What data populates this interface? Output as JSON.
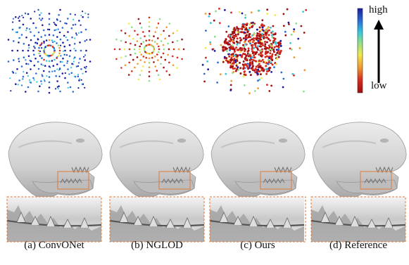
{
  "colorbar": {
    "high_label": "high",
    "low_label": "low",
    "gradient": [
      "#1a1aa0",
      "#2b6fd6",
      "#34c6e0",
      "#8be08a",
      "#f2e84a",
      "#f29a2e",
      "#d62a1e",
      "#9e0f0f"
    ]
  },
  "colors": {
    "mesh_fill": "#d9d9d9",
    "mesh_shadow": "#a6a6a6",
    "zoom_box": "#e07b39"
  },
  "panels": [
    {
      "caption": "(a) ConvONet"
    },
    {
      "caption": "(b) NGLOD"
    },
    {
      "caption": "(c) Ours"
    },
    {
      "caption": "(d) Reference"
    }
  ]
}
